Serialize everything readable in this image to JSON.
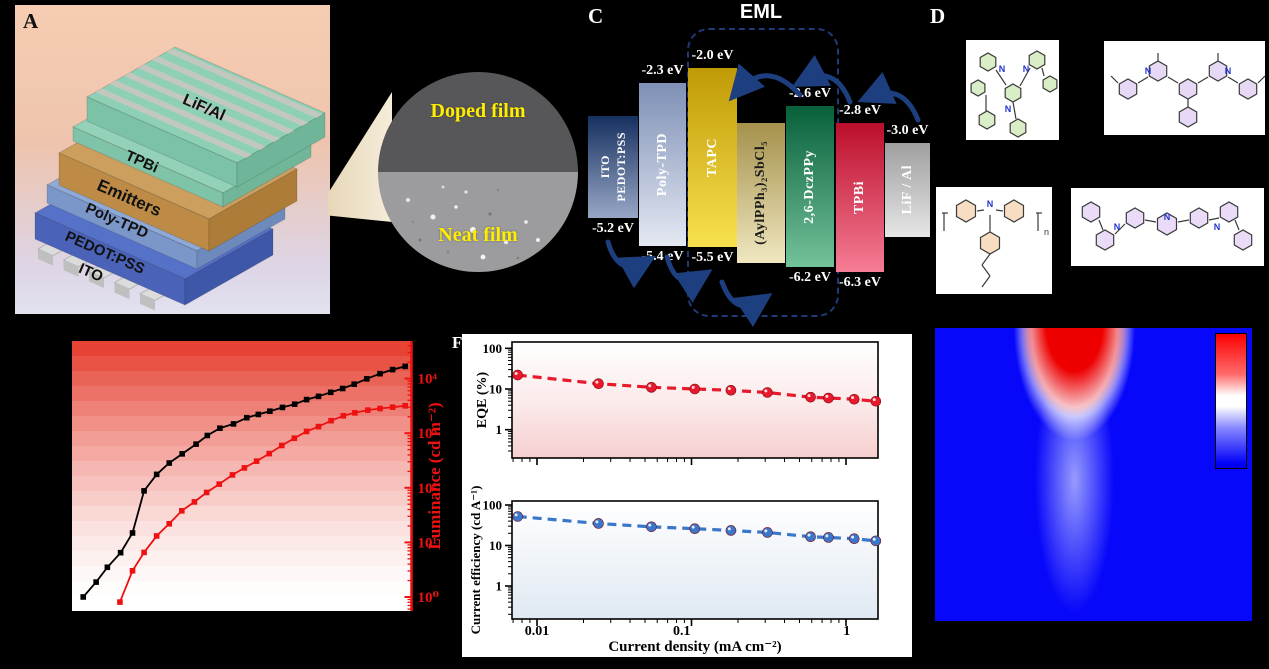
{
  "panel_a": {
    "label": "A",
    "device_stack_layers": [
      "LiF/Al",
      "TPBi",
      "Emitters",
      "Poly-TPD",
      "PEDOT:PSS",
      "ITO"
    ]
  },
  "film_inset": {
    "doped": "Doped film",
    "neat": "Neat film",
    "text_color": "#ffee00"
  },
  "energy_diagram": {
    "label": "C",
    "eml_title": "EML",
    "layers": [
      {
        "lines": [
          "ITO",
          "PEDOT:PSS"
        ],
        "lumo": "",
        "homo": "-5.2 eV",
        "c1": "#16305f",
        "c2": "#98a7c6",
        "text": "#ffffff"
      },
      {
        "lines": [
          "Poly-TPD"
        ],
        "lumo": "-2.3 eV",
        "homo": "-5.4 eV",
        "c1": "#7e90b6",
        "c2": "#e4e8f2",
        "text": "#ffffff"
      },
      {
        "lines": [
          "TAPC"
        ],
        "lumo": "-2.0 eV",
        "homo": "-5.5 eV",
        "c1": "#bf9a06",
        "c2": "#f9e14e",
        "text": "#ffffff"
      },
      {
        "lines": [
          "(AylPPh₃)₂SbCl₅"
        ],
        "lumo": "",
        "homo": "",
        "c1": "#a5914c",
        "c2": "#f0e7c0",
        "text": "#1a1a1a"
      },
      {
        "lines": [
          "2,6-DczPPy"
        ],
        "lumo": "-2.6 eV",
        "homo": "-6.2 eV",
        "c1": "#07603a",
        "c2": "#74c29a",
        "text": "#ffffff"
      },
      {
        "lines": [
          "TPBi"
        ],
        "lumo": "-2.8 eV",
        "homo": "-6.3 eV",
        "c1": "#bb0e2b",
        "c2": "#f57d95",
        "text": "#ffffff"
      },
      {
        "lines": [
          "LiF / Al"
        ],
        "lumo": "-3.0 eV",
        "homo": "",
        "c1": "#9f9f9f",
        "c2": "#e6e6e6",
        "text": "#ffffff"
      }
    ]
  },
  "panel_d": {
    "label": "D"
  },
  "panel_f": {
    "label": "F"
  },
  "chart_data": [
    {
      "id": "jvl",
      "type": "line",
      "right_axis": {
        "label": "Luminance (cd m⁻²)",
        "ticks": [
          "10⁰",
          "10¹",
          "10²",
          "10³",
          "10⁴"
        ],
        "scale": "log",
        "color": "#ee1111"
      },
      "series": [
        {
          "name": "current-density-black-squares",
          "color": "#000000",
          "marker": "square",
          "points_frac": [
            [
              0.033,
              0.052
            ],
            [
              0.071,
              0.107
            ],
            [
              0.104,
              0.162
            ],
            [
              0.143,
              0.216
            ],
            [
              0.178,
              0.289
            ],
            [
              0.212,
              0.445
            ],
            [
              0.249,
              0.506
            ],
            [
              0.286,
              0.548
            ],
            [
              0.324,
              0.582
            ],
            [
              0.365,
              0.618
            ],
            [
              0.398,
              0.65
            ],
            [
              0.435,
              0.677
            ],
            [
              0.475,
              0.693
            ],
            [
              0.514,
              0.716
            ],
            [
              0.548,
              0.728
            ],
            [
              0.582,
              0.74
            ],
            [
              0.619,
              0.754
            ],
            [
              0.655,
              0.766
            ],
            [
              0.69,
              0.783
            ],
            [
              0.725,
              0.795
            ],
            [
              0.761,
              0.81
            ],
            [
              0.796,
              0.824
            ],
            [
              0.83,
              0.84
            ],
            [
              0.867,
              0.86
            ],
            [
              0.906,
              0.879
            ],
            [
              0.943,
              0.894
            ],
            [
              0.98,
              0.906
            ]
          ]
        },
        {
          "name": "luminance-red-squares",
          "color": "#ee1111",
          "marker": "square",
          "points_frac": [
            [
              0.141,
              0.033
            ],
            [
              0.178,
              0.149
            ],
            [
              0.212,
              0.217
            ],
            [
              0.249,
              0.278
            ],
            [
              0.286,
              0.323
            ],
            [
              0.323,
              0.371
            ],
            [
              0.36,
              0.404
            ],
            [
              0.396,
              0.439
            ],
            [
              0.433,
              0.47
            ],
            [
              0.472,
              0.504
            ],
            [
              0.507,
              0.53
            ],
            [
              0.543,
              0.555
            ],
            [
              0.58,
              0.583
            ],
            [
              0.617,
              0.613
            ],
            [
              0.654,
              0.64
            ],
            [
              0.69,
              0.665
            ],
            [
              0.725,
              0.683
            ],
            [
              0.762,
              0.705
            ],
            [
              0.798,
              0.723
            ],
            [
              0.832,
              0.734
            ],
            [
              0.87,
              0.744
            ],
            [
              0.906,
              0.75
            ],
            [
              0.943,
              0.755
            ],
            [
              0.98,
              0.76
            ]
          ]
        }
      ]
    },
    {
      "id": "eqe",
      "type": "line",
      "ylabel": "EQE (%)",
      "yticks": [
        "100",
        "10",
        "1"
      ],
      "xscale": "log",
      "yscale": "log",
      "x": [
        0.0075,
        0.025,
        0.055,
        0.105,
        0.18,
        0.31,
        0.59,
        0.77,
        1.13,
        1.56
      ],
      "values": [
        22,
        13.5,
        11,
        10,
        9.3,
        8.2,
        6.3,
        6.0,
        5.6,
        5.0
      ],
      "color": "#e8192c"
    },
    {
      "id": "ce",
      "type": "line",
      "ylabel": "Current efficiency (cd A⁻¹)",
      "xlabel": "Current density (mA cm⁻²)",
      "yticks": [
        "100",
        "10",
        "1"
      ],
      "xticks": [
        "0.01",
        "0.1",
        "1"
      ],
      "xscale": "log",
      "yscale": "log",
      "x": [
        0.0075,
        0.025,
        0.055,
        0.105,
        0.18,
        0.31,
        0.59,
        0.77,
        1.13,
        1.56
      ],
      "values": [
        52,
        35,
        29,
        26,
        23.5,
        21,
        16.5,
        15.8,
        14.7,
        13
      ],
      "color": "#3a76c9"
    },
    {
      "id": "emission-heatmap",
      "type": "heatmap",
      "base_color": "#0707fa",
      "hot_color": "#ee0000",
      "colorbar": [
        "#fb0000",
        "#ffffff",
        "#0404f8"
      ]
    }
  ]
}
